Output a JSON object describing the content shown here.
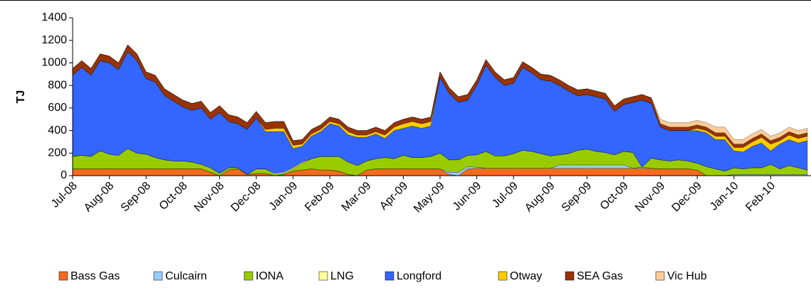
{
  "chart_data": {
    "type": "stacked-area",
    "y_label": "TJ",
    "categories": [
      "Jul-08",
      null,
      null,
      null,
      "Aug-08",
      null,
      null,
      null,
      "Sep-08",
      null,
      null,
      null,
      "Oct-08",
      null,
      null,
      null,
      "Nov-08",
      null,
      null,
      null,
      "Dec-08",
      null,
      null,
      null,
      "Jan-09",
      null,
      null,
      null,
      "Feb-09",
      null,
      null,
      null,
      "Mar-09",
      null,
      null,
      null,
      "Apr-09",
      null,
      null,
      null,
      "May-09",
      null,
      null,
      null,
      "Jun-09",
      null,
      null,
      null,
      "Jul-09",
      null,
      null,
      null,
      "Aug-09",
      null,
      null,
      null,
      "Sep-09",
      null,
      null,
      null,
      "Oct-09",
      null,
      null,
      null,
      "Nov-09",
      null,
      null,
      null,
      "Dec-09",
      null,
      null,
      null,
      "Jan-10",
      null,
      null,
      null,
      "Feb-10",
      null,
      null,
      null,
      null
    ],
    "ylim": [
      0,
      1400
    ],
    "yticks": [
      0,
      200,
      400,
      600,
      800,
      1000,
      1200,
      1400
    ],
    "series": [
      {
        "name": "Bass Gas",
        "color": "#f26b1d",
        "values": [
          60,
          60,
          60,
          60,
          60,
          60,
          60,
          60,
          60,
          60,
          60,
          60,
          60,
          60,
          60,
          30,
          0,
          50,
          60,
          10,
          20,
          20,
          0,
          10,
          40,
          50,
          60,
          50,
          50,
          40,
          10,
          0,
          50,
          60,
          60,
          60,
          60,
          60,
          60,
          60,
          60,
          10,
          0,
          60,
          65,
          65,
          65,
          65,
          65,
          65,
          65,
          65,
          65,
          65,
          65,
          65,
          65,
          65,
          65,
          65,
          65,
          65,
          65,
          65,
          60,
          60,
          60,
          60,
          50,
          0,
          0,
          0,
          0,
          0,
          0,
          0,
          0,
          0,
          0,
          0,
          0
        ]
      },
      {
        "name": "Culcairn",
        "color": "#99ccff",
        "values": [
          0,
          0,
          0,
          0,
          0,
          0,
          0,
          0,
          0,
          0,
          0,
          0,
          0,
          0,
          0,
          0,
          0,
          0,
          0,
          0,
          0,
          0,
          0,
          0,
          0,
          0,
          0,
          0,
          0,
          0,
          0,
          0,
          0,
          0,
          0,
          0,
          0,
          0,
          0,
          0,
          0,
          20,
          30,
          20,
          10,
          0,
          0,
          0,
          0,
          0,
          0,
          0,
          0,
          30,
          30,
          30,
          30,
          30,
          30,
          30,
          30,
          0,
          10,
          0,
          0,
          0,
          0,
          0,
          0,
          0,
          0,
          0,
          10,
          10,
          10,
          10,
          10,
          10,
          10,
          10,
          10
        ]
      },
      {
        "name": "IONA",
        "color": "#99cc00",
        "values": [
          110,
          120,
          110,
          160,
          130,
          120,
          180,
          140,
          130,
          100,
          80,
          70,
          70,
          60,
          40,
          40,
          20,
          20,
          10,
          0,
          40,
          40,
          10,
          10,
          20,
          60,
          90,
          120,
          120,
          130,
          110,
          90,
          80,
          90,
          100,
          90,
          120,
          100,
          100,
          110,
          140,
          110,
          110,
          100,
          110,
          150,
          110,
          110,
          130,
          160,
          150,
          130,
          110,
          90,
          100,
          130,
          140,
          120,
          110,
          90,
          120,
          140,
          0,
          90,
          80,
          70,
          80,
          70,
          60,
          80,
          60,
          40,
          60,
          50,
          60,
          60,
          90,
          50,
          80,
          60,
          40
        ]
      },
      {
        "name": "LNG",
        "color": "#ffff99",
        "values": [
          0,
          0,
          0,
          0,
          0,
          0,
          0,
          0,
          0,
          0,
          0,
          0,
          0,
          0,
          0,
          0,
          0,
          0,
          0,
          0,
          0,
          0,
          10,
          10,
          10,
          10,
          0,
          0,
          0,
          0,
          0,
          0,
          0,
          0,
          0,
          0,
          0,
          0,
          0,
          0,
          0,
          0,
          0,
          0,
          0,
          0,
          0,
          0,
          0,
          0,
          0,
          0,
          0,
          0,
          0,
          0,
          0,
          0,
          0,
          0,
          0,
          0,
          0,
          0,
          0,
          0,
          0,
          0,
          0,
          0,
          0,
          0,
          0,
          0,
          0,
          0,
          0,
          0,
          0,
          0,
          0
        ]
      },
      {
        "name": "Longford",
        "color": "#3366ff",
        "values": [
          720,
          780,
          720,
          800,
          810,
          760,
          860,
          820,
          670,
          670,
          570,
          530,
          480,
          460,
          500,
          430,
          540,
          410,
          390,
          400,
          450,
          330,
          370,
          360,
          170,
          140,
          200,
          220,
          290,
          270,
          240,
          250,
          210,
          220,
          170,
          250,
          240,
          280,
          260,
          270,
          670,
          590,
          510,
          490,
          615,
          765,
          695,
          625,
          625,
          735,
          695,
          655,
          665,
          615,
          555,
          485,
          485,
          485,
          475,
          385,
          415,
          445,
          595,
          485,
          290,
          270,
          260,
          270,
          290,
          300,
          260,
          280,
          150,
          150,
          190,
          220,
          120,
          220,
          230,
          220,
          260
        ]
      },
      {
        "name": "Otway",
        "color": "#ffcc00",
        "values": [
          0,
          0,
          0,
          0,
          0,
          0,
          0,
          0,
          0,
          0,
          0,
          0,
          0,
          0,
          0,
          0,
          0,
          0,
          0,
          0,
          0,
          20,
          30,
          30,
          30,
          20,
          20,
          20,
          20,
          20,
          30,
          20,
          20,
          20,
          30,
          30,
          40,
          40,
          40,
          40,
          0,
          0,
          0,
          0,
          0,
          0,
          0,
          0,
          0,
          0,
          0,
          0,
          0,
          0,
          0,
          0,
          0,
          0,
          0,
          0,
          0,
          0,
          0,
          0,
          0,
          0,
          0,
          0,
          20,
          20,
          30,
          30,
          30,
          40,
          40,
          50,
          60,
          30,
          40,
          40,
          40
        ]
      },
      {
        "name": "SEA Gas",
        "color": "#993300",
        "values": [
          60,
          60,
          60,
          60,
          60,
          60,
          60,
          60,
          60,
          60,
          60,
          60,
          60,
          60,
          60,
          60,
          60,
          60,
          60,
          60,
          60,
          60,
          60,
          60,
          40,
          40,
          40,
          40,
          40,
          40,
          40,
          40,
          40,
          40,
          40,
          40,
          40,
          40,
          40,
          40,
          50,
          50,
          50,
          50,
          50,
          50,
          50,
          50,
          50,
          50,
          50,
          50,
          50,
          50,
          50,
          50,
          50,
          50,
          50,
          50,
          50,
          50,
          50,
          50,
          30,
          30,
          30,
          30,
          30,
          30,
          30,
          30,
          30,
          30,
          30,
          30,
          30,
          30,
          30,
          30,
          30
        ]
      },
      {
        "name": "Vic Hub",
        "color": "#ffcc99",
        "values": [
          0,
          0,
          0,
          0,
          0,
          0,
          0,
          0,
          0,
          0,
          0,
          0,
          0,
          0,
          0,
          0,
          0,
          0,
          0,
          0,
          0,
          0,
          0,
          0,
          0,
          0,
          0,
          0,
          0,
          0,
          0,
          0,
          0,
          0,
          0,
          0,
          0,
          0,
          0,
          0,
          0,
          0,
          0,
          0,
          0,
          0,
          0,
          0,
          0,
          0,
          0,
          0,
          0,
          0,
          0,
          0,
          0,
          0,
          0,
          0,
          0,
          0,
          0,
          0,
          40,
          40,
          40,
          40,
          40,
          40,
          50,
          50,
          40,
          40,
          40,
          40,
          40,
          40,
          40,
          40,
          40
        ]
      }
    ]
  }
}
